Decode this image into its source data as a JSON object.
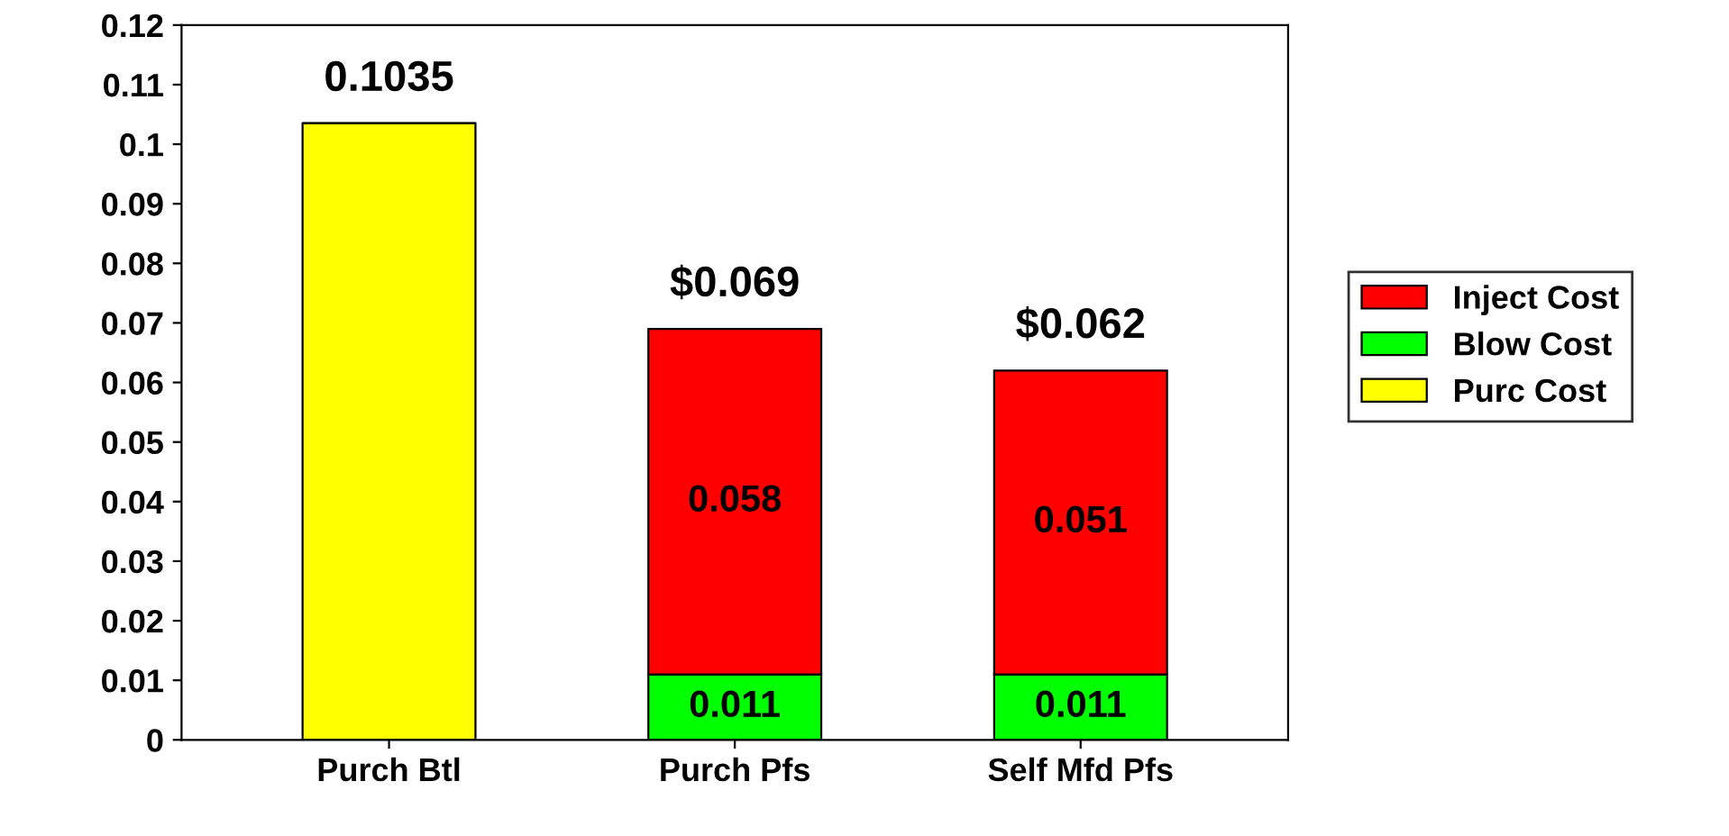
{
  "chart_data": {
    "type": "bar",
    "stacked": true,
    "categories": [
      "Purch Btl",
      "Purch Pfs",
      "Self Mfd Pfs"
    ],
    "series": [
      {
        "name": "Purc Cost",
        "color": "#ffff00",
        "values": [
          0.1035,
          null,
          null
        ],
        "value_labels": [
          null,
          null,
          null
        ]
      },
      {
        "name": "Blow Cost",
        "color": "#00ff00",
        "values": [
          null,
          0.011,
          0.011
        ],
        "value_labels": [
          null,
          "0.011",
          "0.011"
        ]
      },
      {
        "name": "Inject Cost",
        "color": "#ff0000",
        "values": [
          null,
          0.058,
          0.051
        ],
        "value_labels": [
          null,
          "0.058",
          "0.051"
        ]
      }
    ],
    "totals": [
      "0.1035",
      "$0.069",
      "$0.062"
    ],
    "ylim": [
      0,
      0.12
    ],
    "yticks": [
      0,
      0.01,
      0.02,
      0.03,
      0.04,
      0.05,
      0.06,
      0.07,
      0.08,
      0.09,
      0.1,
      0.11,
      0.12
    ],
    "grid": false,
    "legend": "right"
  }
}
